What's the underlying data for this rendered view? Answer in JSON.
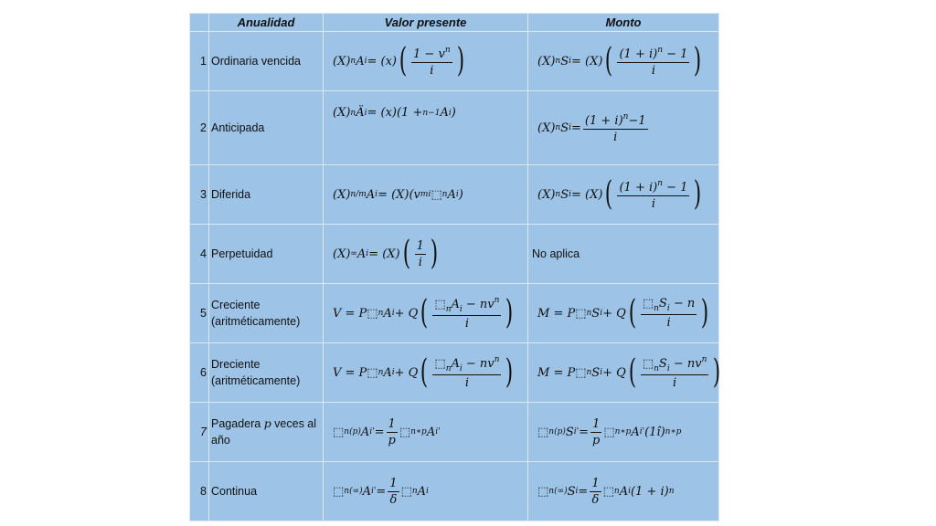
{
  "headers": {
    "num": "",
    "anualidad": "Anualidad",
    "valor": "Valor presente",
    "monto": "Monto"
  },
  "background_color": "#9dc3e6",
  "rows": [
    {
      "num": "1",
      "label": [
        "Ordinaria vencida"
      ],
      "valor": [
        "(X)",
        {
          "sub": "n"
        },
        "A",
        {
          "sub": "i"
        },
        " = (x)",
        {
          "paren": true,
          "frac": {
            "num": [
              "1 − v",
              {
                "sup": "n"
              }
            ],
            "den": [
              "i"
            ]
          }
        }
      ],
      "monto": [
        "(X)",
        {
          "sub": "n"
        },
        "S",
        {
          "sub": "i"
        },
        " = (X)",
        {
          "paren": true,
          "frac": {
            "num": [
              "(1 + i)",
              {
                "sup": "n"
              },
              " − 1"
            ],
            "den": [
              "i"
            ]
          }
        }
      ]
    },
    {
      "num": "2",
      "label": [
        "Anticipada"
      ],
      "valor": [
        "(X)",
        {
          "sub": "n"
        },
        "Ä",
        {
          "sub": "i"
        },
        " = (x)(1 +",
        {
          "sub": "n−1"
        },
        " A",
        {
          "sub": "i"
        },
        ")"
      ],
      "monto": [
        "(X)",
        {
          "sub": "n"
        },
        "S",
        {
          "sub": "i"
        },
        " = ",
        {
          "frac": {
            "num": [
              "(1 + i)",
              {
                "sup": "n"
              },
              "−1"
            ],
            "den": [
              "i"
            ]
          }
        }
      ]
    },
    {
      "num": "3",
      "label": [
        "Diferida"
      ],
      "valor": [
        "(X)",
        {
          "sub": "n/m"
        },
        "A",
        {
          "sub": "i"
        },
        " = (X)(v",
        {
          "sup": "m"
        },
        {
          "sub": "i"
        },
        "⬚",
        {
          "sub": "n"
        },
        "A",
        {
          "sub": "i"
        },
        ")"
      ],
      "monto": [
        "(X)",
        {
          "sub": "n"
        },
        "S",
        {
          "sub": "i"
        },
        " = (X)",
        {
          "paren": true,
          "frac": {
            "num": [
              "(1 + i)",
              {
                "sup": "n"
              },
              " − 1"
            ],
            "den": [
              "i"
            ]
          }
        }
      ]
    },
    {
      "num": "4",
      "label": [
        "Perpetuidad"
      ],
      "valor": [
        "(X)",
        {
          "sub": "∞"
        },
        "A",
        {
          "sub": "i"
        },
        " = (X)",
        {
          "paren": true,
          "frac": {
            "num": [
              "1"
            ],
            "den": [
              "i"
            ]
          }
        }
      ],
      "monto_text": "No aplica"
    },
    {
      "num": "5",
      "label": [
        "Creciente",
        "(aritméticamente)"
      ],
      "valor": [
        "V = P⬚",
        {
          "sub": "n"
        },
        "A",
        {
          "sub": "i"
        },
        " + Q",
        {
          "paren": true,
          "frac": {
            "num": [
              "⬚",
              {
                "sub": "n"
              },
              "A",
              {
                "sub": "i"
              },
              " − nv",
              {
                "sup": "n"
              }
            ],
            "den": [
              "i"
            ]
          }
        }
      ],
      "monto": [
        "M = P⬚",
        {
          "sub": "n"
        },
        "S",
        {
          "sub": "i"
        },
        " + Q",
        {
          "paren": true,
          "frac": {
            "num": [
              "⬚",
              {
                "sub": "n"
              },
              "S",
              {
                "sub": "i"
              },
              " − n"
            ],
            "den": [
              "i"
            ]
          }
        }
      ]
    },
    {
      "num": "6",
      "label": [
        "Dreciente",
        "(aritméticamente)"
      ],
      "valor": [
        "V = P⬚",
        {
          "sub": "n"
        },
        "A",
        {
          "sub": "i"
        },
        " + Q",
        {
          "paren": true,
          "frac": {
            "num": [
              "⬚",
              {
                "sub": "n"
              },
              "A",
              {
                "sub": "i"
              },
              " − nv",
              {
                "sup": "n"
              }
            ],
            "den": [
              "i"
            ]
          }
        }
      ],
      "monto": [
        "M = P⬚",
        {
          "sub": "n"
        },
        "S",
        {
          "sub": "i"
        },
        " + Q",
        {
          "paren": true,
          "frac": {
            "num": [
              "⬚",
              {
                "sub": "n"
              },
              "S",
              {
                "sub": "i"
              },
              " − nv",
              {
                "sup": "n"
              }
            ],
            "den": [
              "i"
            ]
          }
        }
      ]
    },
    {
      "num": "7",
      "label": [
        "Pagadera ",
        "p",
        " veces al año"
      ],
      "valor": [
        "⬚",
        {
          "sub": "n(p)"
        },
        "A",
        {
          "sub": "i'"
        },
        " = ",
        {
          "frac": {
            "num": [
              "1"
            ],
            "den": [
              "p"
            ]
          }
        },
        "⬚",
        {
          "sub": "n∗p"
        },
        "A",
        {
          "sub": "i'"
        }
      ],
      "monto": [
        "⬚",
        {
          "sub": "n(p)"
        },
        "S",
        {
          "sub": "i'"
        },
        " = ",
        {
          "frac": {
            "num": [
              "1"
            ],
            "den": [
              "p"
            ]
          }
        },
        "⬚",
        {
          "sub": "n∗p"
        },
        "A",
        {
          "sub": "i'"
        },
        "(1î)",
        {
          "sup": "n∗p"
        }
      ]
    },
    {
      "num": "8",
      "label": [
        "Continua"
      ],
      "valor": [
        "⬚",
        {
          "sub": "n(∞)"
        },
        "A",
        {
          "sub": "i'"
        },
        " = ",
        {
          "frac": {
            "num": [
              "1"
            ],
            "den": [
              "δ"
            ]
          }
        },
        "⬚",
        {
          "sub": "n"
        },
        "A",
        {
          "sub": "i"
        }
      ],
      "monto": [
        "⬚",
        {
          "sub": "n(∞)"
        },
        "S",
        {
          "sub": "i"
        },
        " = ",
        {
          "frac": {
            "num": [
              "1"
            ],
            "den": [
              "δ"
            ]
          }
        },
        "⬚",
        {
          "sub": "n"
        },
        "A",
        {
          "sub": "i"
        },
        "(1 + i)",
        {
          "sup": "n"
        }
      ]
    }
  ]
}
